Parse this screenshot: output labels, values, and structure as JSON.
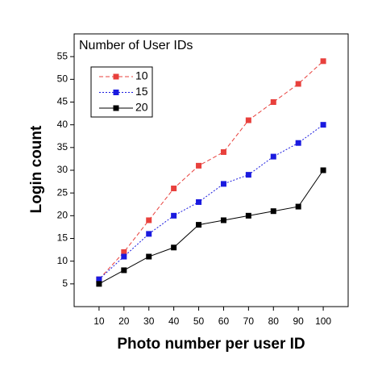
{
  "chart_data": {
    "type": "line",
    "legend_title": "Number of User IDs",
    "x_label": "Photo number per user ID",
    "y_label": "Login count",
    "x": [
      10,
      20,
      30,
      40,
      50,
      60,
      70,
      80,
      90,
      100
    ],
    "series": [
      {
        "name": "10",
        "color": "#e8403c",
        "linestyle": "dashed",
        "values": [
          6,
          12,
          19,
          26,
          31,
          34,
          41,
          45,
          49,
          54
        ]
      },
      {
        "name": "15",
        "color": "#1a1adf",
        "linestyle": "dotted",
        "values": [
          6,
          11,
          16,
          20,
          23,
          27,
          29,
          33,
          36,
          40
        ]
      },
      {
        "name": "20",
        "color": "#000000",
        "linestyle": "solid",
        "values": [
          5,
          8,
          11,
          13,
          18,
          19,
          20,
          21,
          22,
          30
        ]
      }
    ],
    "xlim": [
      0,
      110
    ],
    "xticks": [
      10,
      20,
      30,
      40,
      50,
      60,
      70,
      80,
      90,
      100
    ],
    "ylim": [
      0,
      60
    ],
    "yticks": [
      5,
      10,
      15,
      20,
      25,
      30,
      35,
      40,
      45,
      50,
      55
    ],
    "grid": false,
    "legend_position": "upper left"
  }
}
